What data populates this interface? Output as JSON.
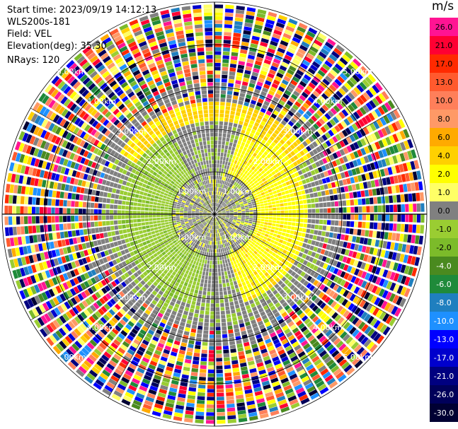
{
  "info": {
    "start_time": "Start time: 2023/09/19 14:12:13",
    "instrument": "WLS200s-181",
    "field": "Field: VEL",
    "elevation": "Elevation(deg): 35.30",
    "nrays": "NRays: 120"
  },
  "colorbar": {
    "unit": "m/s",
    "levels": [
      {
        "label": "26.0",
        "color": "#ff1493",
        "text_color": "#000000"
      },
      {
        "label": "21.0",
        "color": "#ff0033",
        "text_color": "#000000"
      },
      {
        "label": "17.0",
        "color": "#ff2a00",
        "text_color": "#000000"
      },
      {
        "label": "13.0",
        "color": "#ff5a2e",
        "text_color": "#000000"
      },
      {
        "label": "10.0",
        "color": "#ff7f5a",
        "text_color": "#000000"
      },
      {
        "label": "8.0",
        "color": "#ff9966",
        "text_color": "#000000"
      },
      {
        "label": "6.0",
        "color": "#ffaa00",
        "text_color": "#000000"
      },
      {
        "label": "4.0",
        "color": "#ffd000",
        "text_color": "#000000"
      },
      {
        "label": "2.0",
        "color": "#ffff00",
        "text_color": "#000000"
      },
      {
        "label": "1.0",
        "color": "#ffff66",
        "text_color": "#000000"
      },
      {
        "label": "0.0",
        "color": "#808080",
        "text_color": "#000000"
      },
      {
        "label": "-1.0",
        "color": "#9acd32",
        "text_color": "#000000"
      },
      {
        "label": "-2.0",
        "color": "#7cbb2a",
        "text_color": "#000000"
      },
      {
        "label": "-4.0",
        "color": "#4a8a1f",
        "text_color": "#ffffff"
      },
      {
        "label": "-6.0",
        "color": "#1f8a3a",
        "text_color": "#ffffff"
      },
      {
        "label": "-8.0",
        "color": "#1f7fbf",
        "text_color": "#ffffff"
      },
      {
        "label": "-10.0",
        "color": "#1e90ff",
        "text_color": "#ffffff"
      },
      {
        "label": "-13.0",
        "color": "#0000ff",
        "text_color": "#ffffff"
      },
      {
        "label": "-17.0",
        "color": "#0000cd",
        "text_color": "#ffffff"
      },
      {
        "label": "-21.0",
        "color": "#000080",
        "text_color": "#ffffff"
      },
      {
        "label": "-26.0",
        "color": "#00005a",
        "text_color": "#ffffff"
      },
      {
        "label": "-30.0",
        "color": "#000033",
        "text_color": "#ffffff"
      }
    ]
  },
  "ring_labels": [
    "1.00km",
    "2.00km",
    "3.00km",
    "4.00km",
    "5.00km"
  ]
}
